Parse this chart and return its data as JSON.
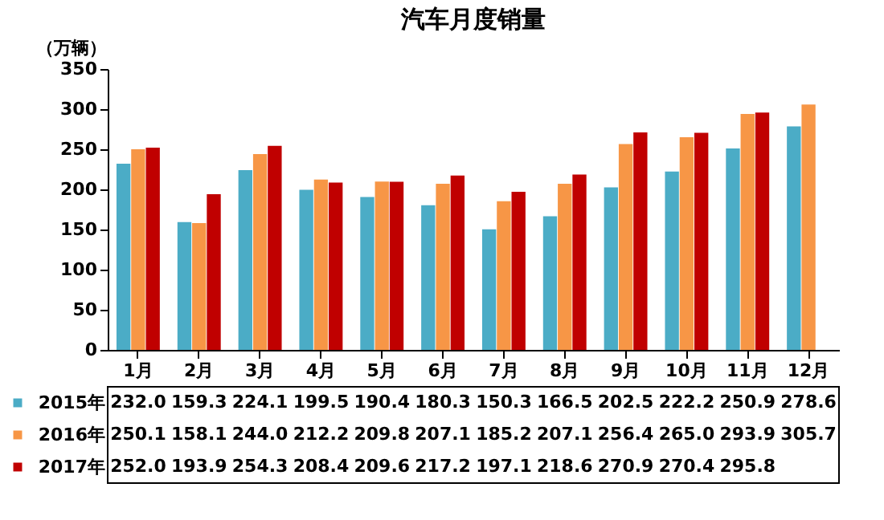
{
  "chart_data": {
    "type": "bar",
    "title": "汽车月度销量",
    "ylabel": "（万辆）",
    "categories": [
      "1月",
      "2月",
      "3月",
      "4月",
      "5月",
      "6月",
      "7月",
      "8月",
      "9月",
      "10月",
      "11月",
      "12月"
    ],
    "series": [
      {
        "name": "2015年",
        "color": "#4bacc6",
        "values": [
          232.0,
          159.3,
          224.1,
          199.5,
          190.4,
          180.3,
          150.3,
          166.5,
          202.5,
          222.2,
          250.9,
          278.6
        ],
        "value_labels": [
          "232.0",
          "159.3",
          "224.1",
          "199.5",
          "190.4",
          "180.3",
          "150.3",
          "166.5",
          "202.5",
          "222.2",
          "250.9",
          "278.6"
        ]
      },
      {
        "name": "2016年",
        "color": "#f79646",
        "values": [
          250.1,
          158.1,
          244.0,
          212.2,
          209.8,
          207.1,
          185.2,
          207.1,
          256.4,
          265.0,
          293.9,
          305.7
        ],
        "value_labels": [
          "250.1",
          "158.1",
          "244.0",
          "212.2",
          "209.8",
          "207.1",
          "185.2",
          "207.1",
          "256.4",
          "265.0",
          "293.9",
          "305.7"
        ]
      },
      {
        "name": "2017年",
        "color": "#c00000",
        "values": [
          252.0,
          193.9,
          254.3,
          208.4,
          209.6,
          217.2,
          197.1,
          218.6,
          270.9,
          270.4,
          295.8,
          null
        ],
        "value_labels": [
          "252.0",
          "193.9",
          "254.3",
          "208.4",
          "209.6",
          "217.2",
          "197.1",
          "218.6",
          "270.9",
          "270.4",
          "295.8",
          null
        ]
      }
    ],
    "ylim": [
      0,
      350
    ],
    "yticks": [
      0,
      50,
      100,
      150,
      200,
      250,
      300,
      350
    ],
    "legend": "bottom"
  }
}
